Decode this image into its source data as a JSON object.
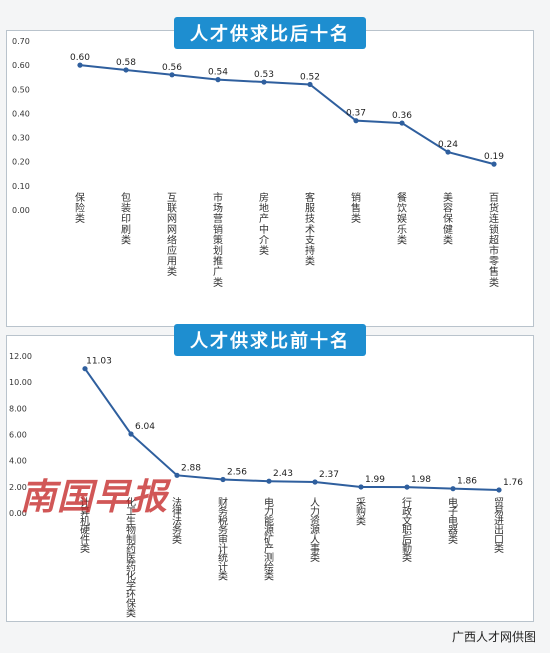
{
  "chart_data": [
    {
      "type": "line",
      "title": "人才供求比后十名",
      "categories": [
        "保险类",
        "包装印刷类",
        "互联网网络应用类",
        "市场营销策划推广类",
        "房地产中介类",
        "客服技术支持类",
        "销售类",
        "餐饮娱乐类",
        "美容保健类",
        "百货连锁超市零售类"
      ],
      "values": [
        0.6,
        0.58,
        0.56,
        0.54,
        0.53,
        0.52,
        0.37,
        0.36,
        0.24,
        0.19
      ],
      "value_labels": [
        "0.60",
        "0.58",
        "0.56",
        "0.54",
        "0.53",
        "0.52",
        "0.37",
        "0.36",
        "0.24",
        "0.19"
      ],
      "yticks": [
        "0.00",
        "0.10",
        "0.20",
        "0.30",
        "0.40",
        "0.50",
        "0.60",
        "0.70"
      ],
      "ylim": [
        0,
        0.7
      ],
      "grid": false,
      "line_color": "#2f5f9e"
    },
    {
      "type": "line",
      "title": "人才供求比前十名",
      "categories": [
        "计算机硬件类",
        "化工生物制药医药化学环保类",
        "法律法务类",
        "财务税务审计统计类",
        "电力能源矿产测绘类",
        "人力资源人事类",
        "采购类",
        "行政文职后勤类",
        "电子电器类",
        "贸易进出口类"
      ],
      "values": [
        11.03,
        6.04,
        2.88,
        2.56,
        2.43,
        2.37,
        1.99,
        1.98,
        1.86,
        1.76
      ],
      "value_labels": [
        "11.03",
        "6.04",
        "2.88",
        "2.56",
        "2.43",
        "2.37",
        "1.99",
        "1.98",
        "1.86",
        "1.76"
      ],
      "yticks": [
        "0.00",
        "2.00",
        "4.00",
        "6.00",
        "8.00",
        "10.00",
        "12.00"
      ],
      "ylim": [
        0,
        12
      ],
      "grid": false,
      "line_color": "#2f5f9e"
    }
  ],
  "credit": "广西人才网供图",
  "watermark": "南国早报",
  "colors": {
    "title_badge": "#1e8ed0",
    "watermark": "#c42828"
  }
}
